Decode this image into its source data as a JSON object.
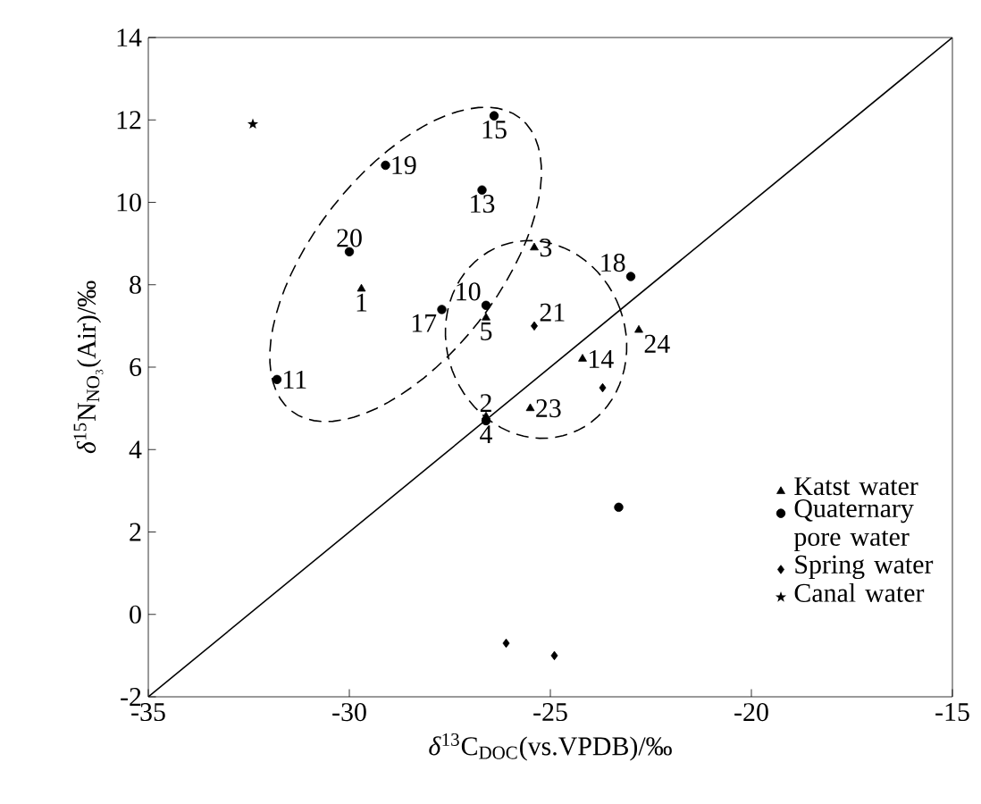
{
  "chart_data": {
    "type": "scatter",
    "xlabel": "*δ*$^{13}$C$_{DOC}$(vs.VPDB)/‰",
    "ylabel": "*δ*$^{15}$N$_{NO₃}$(Air)/‰",
    "xlim": [
      -35,
      -15
    ],
    "ylim": [
      -2,
      14
    ],
    "xticks": [
      -35,
      -30,
      -25,
      -20,
      -15
    ],
    "yticks": [
      -2,
      0,
      2,
      4,
      6,
      8,
      10,
      12,
      14
    ],
    "legend": "bottom right",
    "grid": false,
    "series": [
      {
        "name": "Katst water",
        "color": "#000000",
        "marker": "triangle",
        "x": [
          -29.7,
          -26.6,
          -25.4,
          -26.6,
          -25.5,
          -24.2,
          -22.8
        ],
        "values": [
          7.9,
          7.2,
          8.9,
          4.8,
          5.0,
          6.2,
          6.9
        ]
      },
      {
        "name": "Quaternary pore water",
        "color": "#000000",
        "marker": "circle",
        "x": [
          -26.4,
          -29.1,
          -26.7,
          -30.0,
          -26.6,
          -27.7,
          -31.8,
          -23.0,
          -26.6,
          -23.3
        ],
        "values": [
          12.1,
          10.9,
          10.3,
          8.8,
          7.5,
          7.4,
          5.7,
          8.2,
          4.7,
          2.6
        ]
      },
      {
        "name": "Spring water",
        "color": "#000000",
        "marker": "diamond",
        "x": [
          -25.4,
          -23.7,
          -26.1,
          -24.9
        ],
        "values": [
          7.0,
          5.5,
          -0.7,
          -1.0
        ]
      },
      {
        "name": "Canal water",
        "color": "#000000",
        "marker": "star",
        "x": [
          -32.4
        ],
        "values": [
          11.9
        ]
      },
      {
        "type": "line",
        "color": "#000000",
        "marker": "none",
        "x": [
          -35,
          -15
        ],
        "values": [
          -2,
          14
        ]
      }
    ],
    "annotations": [
      {
        "text": "1",
        "x": -29.7,
        "y": 7.9
      },
      {
        "text": "2",
        "x": -26.6,
        "y": 4.8
      },
      {
        "text": "3",
        "x": -25.4,
        "y": 8.9
      },
      {
        "text": "4",
        "x": -26.6,
        "y": 4.7
      },
      {
        "text": "5",
        "x": -26.6,
        "y": 7.2
      },
      {
        "text": "10",
        "x": -26.6,
        "y": 7.5
      },
      {
        "text": "11",
        "x": -31.8,
        "y": 5.7
      },
      {
        "text": "13",
        "x": -26.7,
        "y": 10.3
      },
      {
        "text": "14",
        "x": -24.2,
        "y": 6.2
      },
      {
        "text": "15",
        "x": -26.4,
        "y": 12.1
      },
      {
        "text": "17",
        "x": -27.7,
        "y": 7.4
      },
      {
        "text": "18",
        "x": -23.0,
        "y": 8.2
      },
      {
        "text": "19",
        "x": -29.1,
        "y": 10.9
      },
      {
        "text": "20",
        "x": -30.0,
        "y": 8.8
      },
      {
        "text": "21",
        "x": -25.4,
        "y": 7.0
      },
      {
        "text": "23",
        "x": -25.5,
        "y": 5.0
      },
      {
        "text": "24",
        "x": -22.8,
        "y": 6.9
      }
    ]
  }
}
